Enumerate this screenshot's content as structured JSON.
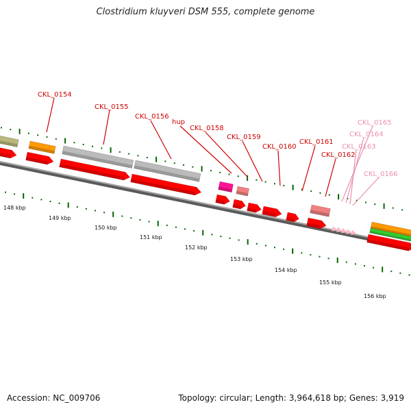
{
  "title": "Clostridium kluyveri DSM 555, complete genome",
  "footer": {
    "accession": "Accession: NC_009706",
    "stats": "Topology: circular; Length: 3,964,618 bp; Genes: 3,919"
  },
  "colors": {
    "cds": "#ff0000",
    "trna": "#ff9900",
    "rrna": "#bbbbbb",
    "hypothetical": "#ff1493",
    "pseudo": "#f08080",
    "misc": "#ffb6c1",
    "label_strong": "#cc0000",
    "label_light": "#e890b0",
    "tick": "#006600",
    "backbone": "#8c8c8c"
  },
  "gene_labels": [
    {
      "text": "CKL_0154",
      "style": "strong"
    },
    {
      "text": "CKL_0155",
      "style": "strong"
    },
    {
      "text": "CKL_0156",
      "style": "strong"
    },
    {
      "text": "hup",
      "style": "strong"
    },
    {
      "text": "CKL_0158",
      "style": "strong"
    },
    {
      "text": "CKL_0159",
      "style": "strong"
    },
    {
      "text": "CKL_0160",
      "style": "strong"
    },
    {
      "text": "CKL_0161",
      "style": "strong"
    },
    {
      "text": "CKL_0162",
      "style": "strong"
    },
    {
      "text": "CKL_0165",
      "style": "light"
    },
    {
      "text": "CKL_0164",
      "style": "light"
    },
    {
      "text": "CKL_0163",
      "style": "light"
    },
    {
      "text": "CKL_0166",
      "style": "light"
    }
  ],
  "scale_labels": [
    "148 kbp",
    "149 kbp",
    "150 kbp",
    "151 kbp",
    "152 kbp",
    "153 kbp",
    "154 kbp",
    "155 kbp",
    "156 kbp"
  ]
}
